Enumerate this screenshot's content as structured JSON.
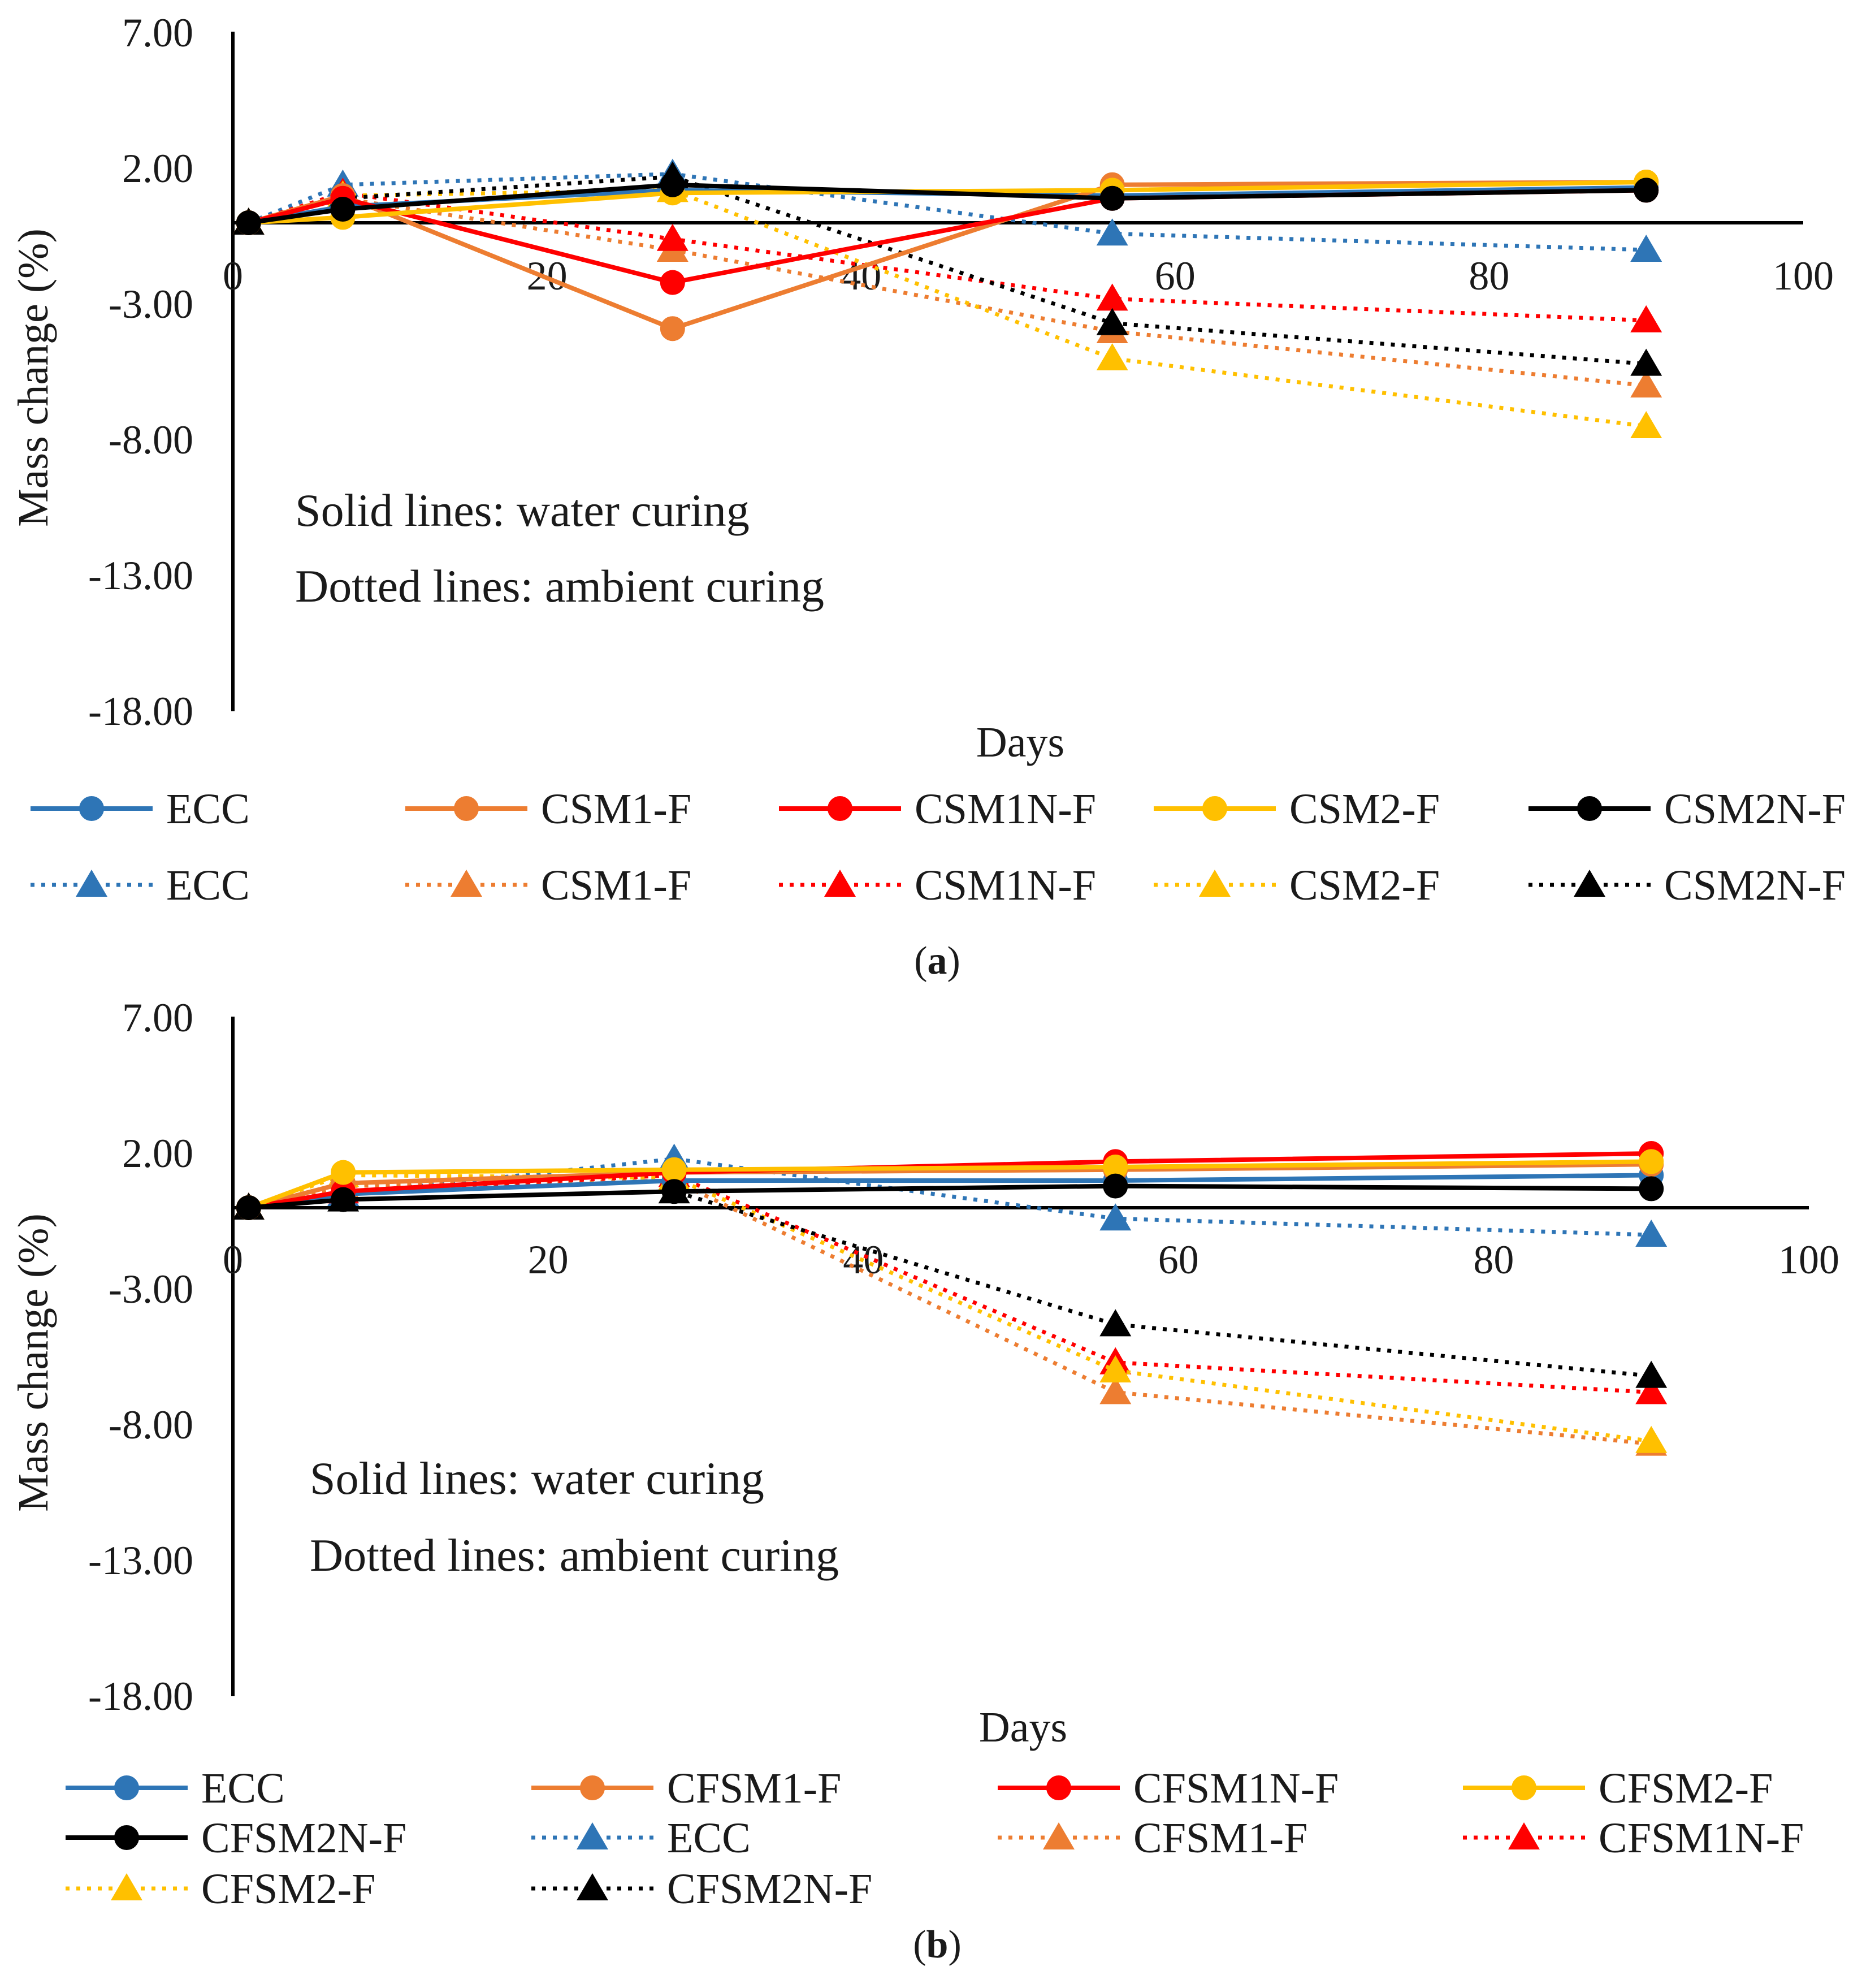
{
  "colors": {
    "ECC": "#2e75b6",
    "CSM1-F": "#ed7d31",
    "CSM1N-F": "#ff0000",
    "CSM2-F": "#ffc000",
    "CSM2N-F": "#000000",
    "CFSM1-F": "#ed7d31",
    "CFSM1N-F": "#ff0000",
    "CFSM2-F": "#ffc000",
    "CFSM2N-F": "#000000"
  },
  "chart_data": [
    {
      "id": "a",
      "type": "line",
      "caption": "a",
      "caption_open": "(",
      "caption_close": ")",
      "xlabel": "Days",
      "ylabel": "Mass change (%)",
      "xlim": [
        0,
        100
      ],
      "ylim": [
        -18,
        7
      ],
      "x_ticks": [
        "0",
        "20",
        "40",
        "60",
        "80",
        "100"
      ],
      "y_ticks": [
        "7.00",
        "2.00",
        "-3.00",
        "-8.00",
        "-13.00",
        "-18.00"
      ],
      "notes": [
        "Solid lines: water curing",
        "Dotted lines: ambient curing"
      ],
      "x": [
        1,
        7,
        28,
        56,
        90
      ],
      "series": [
        {
          "name": "ECC",
          "style": "solid",
          "marker": "circle",
          "values": [
            0,
            0.6,
            1.2,
            1.0,
            1.3
          ]
        },
        {
          "name": "CSM1-F",
          "style": "solid",
          "marker": "circle",
          "values": [
            0,
            1.0,
            -3.9,
            1.4,
            1.5
          ]
        },
        {
          "name": "CSM1N-F",
          "style": "solid",
          "marker": "circle",
          "values": [
            0,
            0.9,
            -2.2,
            0.9,
            1.2
          ]
        },
        {
          "name": "CSM2-F",
          "style": "solid",
          "marker": "circle",
          "values": [
            0,
            0.2,
            1.1,
            1.2,
            1.5
          ]
        },
        {
          "name": "CSM2N-F",
          "style": "solid",
          "marker": "circle",
          "values": [
            0,
            0.5,
            1.4,
            0.9,
            1.2
          ]
        },
        {
          "name": "ECC",
          "style": "dotted",
          "marker": "triangle",
          "values": [
            0,
            1.4,
            1.8,
            -0.4,
            -1.0
          ]
        },
        {
          "name": "CSM1-F",
          "style": "dotted",
          "marker": "triangle",
          "values": [
            0,
            0.9,
            -1.0,
            -4.0,
            -6.0
          ]
        },
        {
          "name": "CSM1N-F",
          "style": "dotted",
          "marker": "triangle",
          "values": [
            0,
            1.1,
            -0.6,
            -2.8,
            -3.6
          ]
        },
        {
          "name": "CSM2-F",
          "style": "dotted",
          "marker": "triangle",
          "values": [
            0,
            1.0,
            1.2,
            -5.0,
            -7.5
          ]
        },
        {
          "name": "CSM2N-F",
          "style": "dotted",
          "marker": "triangle",
          "values": [
            0,
            0.9,
            1.7,
            -3.7,
            -5.2
          ]
        }
      ]
    },
    {
      "id": "b",
      "type": "line",
      "caption": "b",
      "caption_open": "(",
      "caption_close": ")",
      "xlabel": "Days",
      "ylabel": "Mass change (%)",
      "xlim": [
        0,
        100
      ],
      "ylim": [
        -18,
        7
      ],
      "x_ticks": [
        "0",
        "20",
        "40",
        "60",
        "80",
        "100"
      ],
      "y_ticks": [
        "7.00",
        "2.00",
        "-3.00",
        "-8.00",
        "-13.00",
        "-18.00"
      ],
      "notes": [
        "Solid lines: water curing",
        "Dotted lines: ambient curing"
      ],
      "x": [
        1,
        7,
        28,
        56,
        90
      ],
      "series": [
        {
          "name": "ECC",
          "style": "solid",
          "marker": "circle",
          "values": [
            0,
            0.5,
            1.0,
            1.0,
            1.2
          ]
        },
        {
          "name": "CFSM1-F",
          "style": "solid",
          "marker": "circle",
          "values": [
            0,
            0.9,
            1.3,
            1.4,
            1.6
          ]
        },
        {
          "name": "CFSM1N-F",
          "style": "solid",
          "marker": "circle",
          "values": [
            0,
            0.6,
            1.3,
            1.7,
            2.0
          ]
        },
        {
          "name": "CFSM2-F",
          "style": "solid",
          "marker": "circle",
          "values": [
            0,
            1.3,
            1.4,
            1.5,
            1.7
          ]
        },
        {
          "name": "CFSM2N-F",
          "style": "solid",
          "marker": "circle",
          "values": [
            0,
            0.3,
            0.6,
            0.8,
            0.7
          ]
        },
        {
          "name": "ECC",
          "style": "dotted",
          "marker": "triangle",
          "values": [
            0,
            0.5,
            1.8,
            -0.4,
            -1.0
          ]
        },
        {
          "name": "CFSM1-F",
          "style": "dotted",
          "marker": "triangle",
          "values": [
            0,
            0.8,
            1.0,
            -6.8,
            -8.7
          ]
        },
        {
          "name": "CFSM1N-F",
          "style": "dotted",
          "marker": "triangle",
          "values": [
            0,
            0.6,
            1.2,
            -5.7,
            -6.8
          ]
        },
        {
          "name": "CFSM2-F",
          "style": "dotted",
          "marker": "triangle",
          "values": [
            0,
            1.2,
            1.1,
            -6.0,
            -8.6
          ]
        },
        {
          "name": "CFSM2N-F",
          "style": "dotted",
          "marker": "triangle",
          "values": [
            0,
            0.3,
            0.6,
            -4.3,
            -6.2
          ]
        }
      ]
    }
  ]
}
